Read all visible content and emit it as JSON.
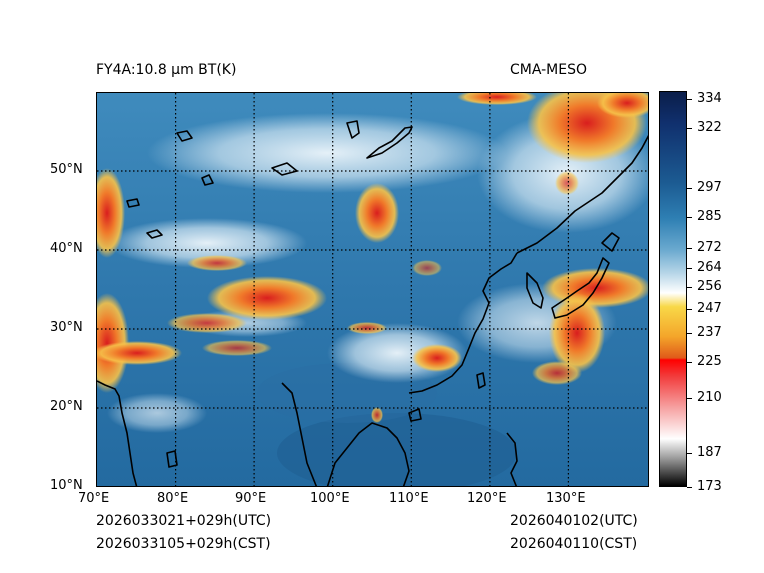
{
  "title_left": "FY4A:10.8 µm BT(K)",
  "title_right": "CMA-MESO",
  "bottom_left": {
    "utc": "2026033021+029h(UTC)",
    "cst": "2026033105+029h(CST)"
  },
  "bottom_right": {
    "utc": "2026040102(UTC)",
    "cst": "2026040110(CST)"
  },
  "lon_labels": [
    "70°E",
    "80°E",
    "90°E",
    "100°E",
    "110°E",
    "120°E",
    "130°E"
  ],
  "lat_labels": [
    "50°N",
    "40°N",
    "30°N",
    "20°N",
    "10°N"
  ],
  "colorbar_ticks": [
    "334",
    "322",
    "297",
    "285",
    "272",
    "264",
    "256",
    "247",
    "237",
    "225",
    "210",
    "187",
    "173"
  ],
  "colors": {
    "ocean": "#2e74a8",
    "cloud_cold": "#e8552a",
    "cloud_warm": "#f6c04a",
    "land": "#3c86b8"
  }
}
